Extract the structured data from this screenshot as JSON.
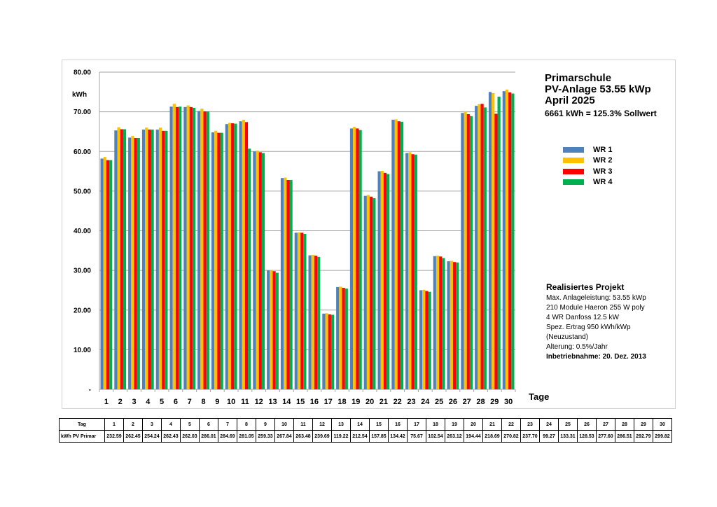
{
  "header": {
    "title": "Primarschule",
    "subtitle1": "PV-Anlage 53.55 kWp",
    "subtitle2": "April 2025",
    "summary": "6661 kWh = 125.3% Sollwert"
  },
  "project": {
    "heading": "Realisiertes Projekt",
    "lines": [
      "Max. Anlageleistung: 53.55 kWp",
      "210 Module Haeron 255 W poly",
      "4 WR Danfoss 12.5 kW",
      "Spez. Ertrag 950 kWh/kWp",
      "(Neuzustand)",
      "Alterung: 0.5%/Jahr"
    ],
    "commissioning": "Inbetriebnahme: 20. Dez. 2013"
  },
  "chart_data": {
    "type": "bar",
    "title": "",
    "xlabel": "Tage",
    "ylabel": "kWh",
    "ylim": [
      0,
      80
    ],
    "yticks": [
      "-",
      "10.00",
      "20.00",
      "30.00",
      "40.00",
      "50.00",
      "60.00",
      "70.00",
      "80.00"
    ],
    "grid": true,
    "legend_position": "right",
    "categories": [
      "1",
      "2",
      "3",
      "4",
      "5",
      "6",
      "7",
      "8",
      "9",
      "10",
      "11",
      "12",
      "13",
      "14",
      "15",
      "16",
      "17",
      "18",
      "19",
      "20",
      "21",
      "22",
      "23",
      "24",
      "25",
      "26",
      "27",
      "28",
      "29",
      "30"
    ],
    "series": [
      {
        "name": "WR 1",
        "color": "#4f81bd",
        "values": [
          58.2,
          65.3,
          63.5,
          65.5,
          65.5,
          71.3,
          71.2,
          70.2,
          64.8,
          66.9,
          67.6,
          60.0,
          30.0,
          53.3,
          39.5,
          33.8,
          19.1,
          25.8,
          65.8,
          48.8,
          55.0,
          68.0,
          59.6,
          25.0,
          33.6,
          32.3,
          69.7,
          71.5,
          75.0,
          75.2
        ]
      },
      {
        "name": "WR 2",
        "color": "#ffc000",
        "values": [
          58.6,
          66.1,
          63.9,
          66.0,
          66.0,
          72.0,
          71.6,
          70.8,
          65.2,
          67.2,
          68.0,
          60.2,
          30.0,
          53.4,
          39.6,
          33.9,
          19.2,
          25.9,
          66.2,
          49.0,
          55.1,
          68.1,
          59.8,
          25.1,
          33.7,
          32.4,
          70.1,
          71.9,
          74.7,
          75.6
        ]
      },
      {
        "name": "WR 3",
        "color": "#ff0000",
        "values": [
          57.8,
          65.6,
          63.4,
          65.5,
          65.2,
          71.2,
          71.2,
          70.1,
          64.7,
          67.1,
          67.4,
          59.8,
          29.8,
          52.8,
          39.5,
          33.7,
          18.9,
          25.6,
          65.8,
          48.6,
          54.6,
          67.6,
          59.3,
          24.8,
          33.5,
          32.1,
          69.4,
          72.0,
          69.5,
          74.9
        ]
      },
      {
        "name": "WR 4",
        "color": "#00b050",
        "values": [
          57.8,
          65.6,
          63.4,
          65.5,
          65.2,
          71.3,
          71.0,
          70.1,
          64.7,
          67.0,
          60.7,
          59.6,
          29.4,
          52.8,
          39.2,
          33.4,
          18.8,
          25.4,
          65.4,
          48.2,
          54.3,
          67.5,
          59.2,
          24.6,
          33.1,
          32.0,
          68.9,
          71.1,
          73.8,
          74.6
        ]
      }
    ]
  },
  "table": {
    "row1_label": "Tag",
    "row2_label": "kWh PV Primar",
    "days": [
      "1",
      "2",
      "3",
      "4",
      "5",
      "6",
      "7",
      "8",
      "9",
      "10",
      "11",
      "12",
      "13",
      "14",
      "15",
      "16",
      "17",
      "18",
      "19",
      "20",
      "21",
      "22",
      "23",
      "24",
      "25",
      "26",
      "27",
      "28",
      "29",
      "30"
    ],
    "values": [
      "232.59",
      "262.45",
      "254.24",
      "262.43",
      "262.03",
      "286.01",
      "284.69",
      "281.05",
      "259.33",
      "267.84",
      "263.48",
      "239.69",
      "119.22",
      "212.54",
      "157.85",
      "134.42",
      "75.67",
      "102.54",
      "263.12",
      "194.44",
      "218.69",
      "270.82",
      "237.70",
      "99.27",
      "133.31",
      "128.53",
      "277.60",
      "286.51",
      "292.79",
      "299.82"
    ]
  }
}
